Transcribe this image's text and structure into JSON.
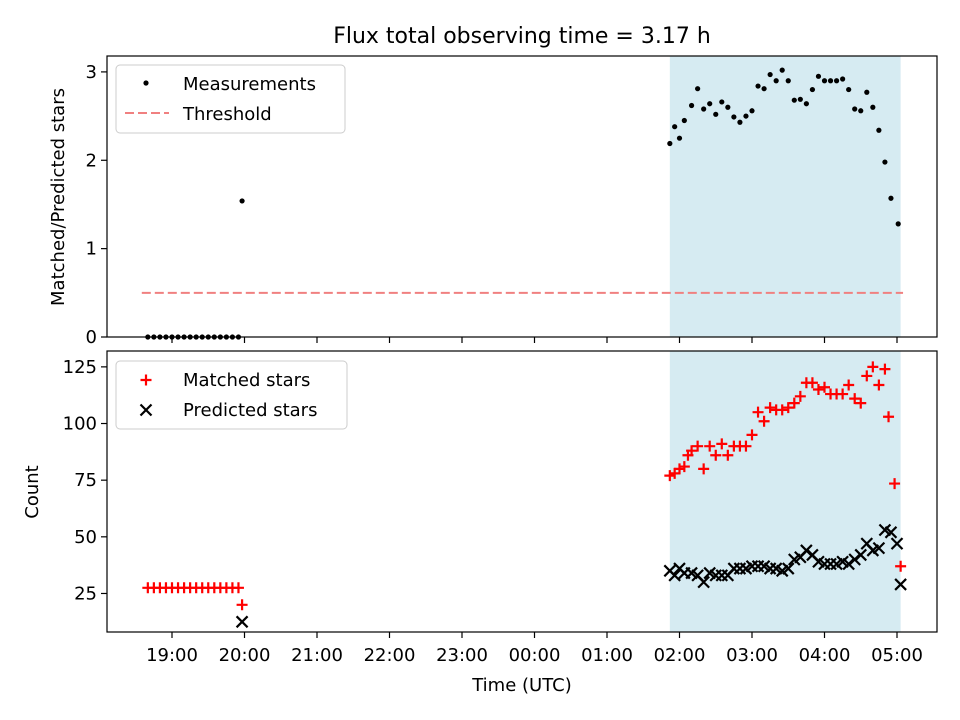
{
  "figure_title": "Flux total observing time = 3.17 h",
  "colors": {
    "shade": "#add8e6",
    "measurement": "#000000",
    "threshold": "#f08080",
    "matched": "#ff0000",
    "predicted": "#000000"
  },
  "chart_data": [
    {
      "type": "scatter",
      "ylabel": "Matched/Predicted stars",
      "xlabel": "",
      "ylim": [
        0,
        3.18
      ],
      "y_ticks": [
        0,
        1,
        2,
        3
      ],
      "shaded_x_range": [
        "2024-01-02T01:52",
        "2024-01-02T05:03"
      ],
      "legend": {
        "position": "top-left",
        "entries": [
          "Measurements",
          "Threshold"
        ]
      },
      "threshold": {
        "name": "Threshold",
        "y": 0.5,
        "x_range": [
          "2024-01-01T18:35",
          "2024-01-02T05:05"
        ]
      },
      "series": [
        {
          "name": "Measurements",
          "points": [
            [
              "2024-01-01T18:40",
              0
            ],
            [
              "2024-01-01T18:45",
              0
            ],
            [
              "2024-01-01T18:50",
              0
            ],
            [
              "2024-01-01T18:55",
              0
            ],
            [
              "2024-01-01T19:00",
              0
            ],
            [
              "2024-01-01T19:05",
              0
            ],
            [
              "2024-01-01T19:10",
              0
            ],
            [
              "2024-01-01T19:15",
              0
            ],
            [
              "2024-01-01T19:20",
              0
            ],
            [
              "2024-01-01T19:25",
              0
            ],
            [
              "2024-01-01T19:30",
              0
            ],
            [
              "2024-01-01T19:35",
              0
            ],
            [
              "2024-01-01T19:40",
              0
            ],
            [
              "2024-01-01T19:45",
              0
            ],
            [
              "2024-01-01T19:50",
              0
            ],
            [
              "2024-01-01T19:55",
              0
            ],
            [
              "2024-01-01T19:58",
              1.54
            ],
            [
              "2024-01-02T01:52",
              2.19
            ],
            [
              "2024-01-02T01:56",
              2.38
            ],
            [
              "2024-01-02T02:00",
              2.25
            ],
            [
              "2024-01-02T02:04",
              2.45
            ],
            [
              "2024-01-02T02:10",
              2.62
            ],
            [
              "2024-01-02T02:15",
              2.81
            ],
            [
              "2024-01-02T02:20",
              2.58
            ],
            [
              "2024-01-02T02:25",
              2.64
            ],
            [
              "2024-01-02T02:30",
              2.52
            ],
            [
              "2024-01-02T02:35",
              2.66
            ],
            [
              "2024-01-02T02:40",
              2.6
            ],
            [
              "2024-01-02T02:45",
              2.49
            ],
            [
              "2024-01-02T02:50",
              2.43
            ],
            [
              "2024-01-02T02:55",
              2.5
            ],
            [
              "2024-01-02T03:00",
              2.56
            ],
            [
              "2024-01-02T03:05",
              2.84
            ],
            [
              "2024-01-02T03:10",
              2.81
            ],
            [
              "2024-01-02T03:15",
              2.97
            ],
            [
              "2024-01-02T03:20",
              2.9
            ],
            [
              "2024-01-02T03:25",
              3.02
            ],
            [
              "2024-01-02T03:30",
              2.9
            ],
            [
              "2024-01-02T03:35",
              2.68
            ],
            [
              "2024-01-02T03:40",
              2.69
            ],
            [
              "2024-01-02T03:45",
              2.64
            ],
            [
              "2024-01-02T03:50",
              2.8
            ],
            [
              "2024-01-02T03:55",
              2.95
            ],
            [
              "2024-01-02T04:00",
              2.9
            ],
            [
              "2024-01-02T04:05",
              2.9
            ],
            [
              "2024-01-02T04:10",
              2.9
            ],
            [
              "2024-01-02T04:15",
              2.92
            ],
            [
              "2024-01-02T04:20",
              2.8
            ],
            [
              "2024-01-02T04:25",
              2.58
            ],
            [
              "2024-01-02T04:30",
              2.56
            ],
            [
              "2024-01-02T04:35",
              2.77
            ],
            [
              "2024-01-02T04:40",
              2.6
            ],
            [
              "2024-01-02T04:45",
              2.34
            ],
            [
              "2024-01-02T04:50",
              1.98
            ],
            [
              "2024-01-02T04:55",
              1.57
            ],
            [
              "2024-01-02T05:01",
              1.28
            ]
          ]
        }
      ]
    },
    {
      "type": "scatter",
      "ylabel": "Count",
      "xlabel": "Time (UTC)",
      "ylim": [
        8,
        132
      ],
      "y_ticks": [
        25,
        50,
        75,
        100,
        125
      ],
      "x_ticks": [
        "19:00",
        "20:00",
        "21:00",
        "22:00",
        "23:00",
        "00:00",
        "01:00",
        "02:00",
        "03:00",
        "04:00",
        "05:00"
      ],
      "x_tick_times": [
        "2024-01-01T19:00",
        "2024-01-01T20:00",
        "2024-01-01T21:00",
        "2024-01-01T22:00",
        "2024-01-01T23:00",
        "2024-01-02T00:00",
        "2024-01-02T01:00",
        "2024-01-02T02:00",
        "2024-01-02T03:00",
        "2024-01-02T04:00",
        "2024-01-02T05:00"
      ],
      "shaded_x_range": [
        "2024-01-02T01:52",
        "2024-01-02T05:03"
      ],
      "legend": {
        "position": "top-left",
        "entries": [
          "Matched stars",
          "Predicted stars"
        ]
      },
      "series": [
        {
          "name": "Matched stars",
          "marker": "plus",
          "points": [
            [
              "2024-01-01T18:40",
              27.5
            ],
            [
              "2024-01-01T18:45",
              27.5
            ],
            [
              "2024-01-01T18:50",
              27.5
            ],
            [
              "2024-01-01T18:55",
              27.5
            ],
            [
              "2024-01-01T19:00",
              27.5
            ],
            [
              "2024-01-01T19:05",
              27.5
            ],
            [
              "2024-01-01T19:10",
              27.5
            ],
            [
              "2024-01-01T19:15",
              27.5
            ],
            [
              "2024-01-01T19:20",
              27.5
            ],
            [
              "2024-01-01T19:25",
              27.5
            ],
            [
              "2024-01-01T19:30",
              27.5
            ],
            [
              "2024-01-01T19:35",
              27.5
            ],
            [
              "2024-01-01T19:40",
              27.5
            ],
            [
              "2024-01-01T19:45",
              27.5
            ],
            [
              "2024-01-01T19:50",
              27.5
            ],
            [
              "2024-01-01T19:55",
              27.5
            ],
            [
              "2024-01-01T19:58",
              20
            ],
            [
              "2024-01-02T01:52",
              77
            ],
            [
              "2024-01-02T01:56",
              78
            ],
            [
              "2024-01-02T02:00",
              80
            ],
            [
              "2024-01-02T02:04",
              81
            ],
            [
              "2024-01-02T02:07",
              86
            ],
            [
              "2024-01-02T02:10",
              88
            ],
            [
              "2024-01-02T02:15",
              90
            ],
            [
              "2024-01-02T02:20",
              80
            ],
            [
              "2024-01-02T02:25",
              90
            ],
            [
              "2024-01-02T02:30",
              86
            ],
            [
              "2024-01-02T02:35",
              91
            ],
            [
              "2024-01-02T02:40",
              86
            ],
            [
              "2024-01-02T02:45",
              90
            ],
            [
              "2024-01-02T02:50",
              90
            ],
            [
              "2024-01-02T02:55",
              90
            ],
            [
              "2024-01-02T03:00",
              95
            ],
            [
              "2024-01-02T03:05",
              105
            ],
            [
              "2024-01-02T03:10",
              101
            ],
            [
              "2024-01-02T03:15",
              107
            ],
            [
              "2024-01-02T03:20",
              106
            ],
            [
              "2024-01-02T03:25",
              106
            ],
            [
              "2024-01-02T03:30",
              107
            ],
            [
              "2024-01-02T03:35",
              109
            ],
            [
              "2024-01-02T03:40",
              112
            ],
            [
              "2024-01-02T03:45",
              118
            ],
            [
              "2024-01-02T03:50",
              118
            ],
            [
              "2024-01-02T03:55",
              115
            ],
            [
              "2024-01-02T04:00",
              116
            ],
            [
              "2024-01-02T04:05",
              113
            ],
            [
              "2024-01-02T04:10",
              113
            ],
            [
              "2024-01-02T04:15",
              113
            ],
            [
              "2024-01-02T04:20",
              117
            ],
            [
              "2024-01-02T04:25",
              111
            ],
            [
              "2024-01-02T04:30",
              109
            ],
            [
              "2024-01-02T04:35",
              121
            ],
            [
              "2024-01-02T04:40",
              125
            ],
            [
              "2024-01-02T04:45",
              117
            ],
            [
              "2024-01-02T04:50",
              124
            ],
            [
              "2024-01-02T04:53",
              103
            ],
            [
              "2024-01-02T04:58",
              73.5
            ],
            [
              "2024-01-02T05:03",
              37
            ]
          ]
        },
        {
          "name": "Predicted stars",
          "marker": "x",
          "points": [
            [
              "2024-01-01T19:58",
              12.5
            ],
            [
              "2024-01-02T01:52",
              35
            ],
            [
              "2024-01-02T01:56",
              33
            ],
            [
              "2024-01-02T02:00",
              36
            ],
            [
              "2024-01-02T02:04",
              34
            ],
            [
              "2024-01-02T02:10",
              34
            ],
            [
              "2024-01-02T02:15",
              33
            ],
            [
              "2024-01-02T02:20",
              30
            ],
            [
              "2024-01-02T02:25",
              34
            ],
            [
              "2024-01-02T02:30",
              33
            ],
            [
              "2024-01-02T02:35",
              33
            ],
            [
              "2024-01-02T02:40",
              33
            ],
            [
              "2024-01-02T02:45",
              36
            ],
            [
              "2024-01-02T02:50",
              36
            ],
            [
              "2024-01-02T02:55",
              36
            ],
            [
              "2024-01-02T03:00",
              37
            ],
            [
              "2024-01-02T03:05",
              37
            ],
            [
              "2024-01-02T03:10",
              37
            ],
            [
              "2024-01-02T03:15",
              36
            ],
            [
              "2024-01-02T03:20",
              36
            ],
            [
              "2024-01-02T03:25",
              35
            ],
            [
              "2024-01-02T03:30",
              36
            ],
            [
              "2024-01-02T03:35",
              40
            ],
            [
              "2024-01-02T03:40",
              41
            ],
            [
              "2024-01-02T03:45",
              44
            ],
            [
              "2024-01-02T03:50",
              42
            ],
            [
              "2024-01-02T03:55",
              39
            ],
            [
              "2024-01-02T04:00",
              38
            ],
            [
              "2024-01-02T04:05",
              38
            ],
            [
              "2024-01-02T04:10",
              38
            ],
            [
              "2024-01-02T04:15",
              39
            ],
            [
              "2024-01-02T04:20",
              38
            ],
            [
              "2024-01-02T04:25",
              40
            ],
            [
              "2024-01-02T04:30",
              42
            ],
            [
              "2024-01-02T04:35",
              47
            ],
            [
              "2024-01-02T04:40",
              44
            ],
            [
              "2024-01-02T04:45",
              45
            ],
            [
              "2024-01-02T04:50",
              53
            ],
            [
              "2024-01-02T04:55",
              52
            ],
            [
              "2024-01-02T05:00",
              47
            ],
            [
              "2024-01-02T05:03",
              29
            ]
          ]
        }
      ]
    }
  ]
}
